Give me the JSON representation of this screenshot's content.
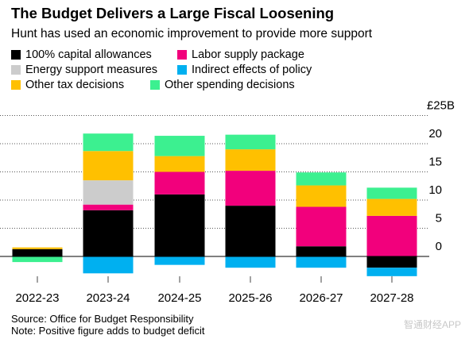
{
  "title": "The Budget Delivers a Large Fiscal Loosening",
  "subtitle": "Hunt has used an economic improvement to provide more support",
  "legend": [
    {
      "label": "100% capital allowances",
      "color": "#000000"
    },
    {
      "label": "Labor supply package",
      "color": "#f2007c"
    },
    {
      "label": "Energy support measures",
      "color": "#cccccc"
    },
    {
      "label": "Indirect effects of policy",
      "color": "#00b0f0"
    },
    {
      "label": "Other tax decisions",
      "color": "#ffc000"
    },
    {
      "label": "Other spending decisions",
      "color": "#3cf090"
    }
  ],
  "chart_data": {
    "type": "bar",
    "stacked": true,
    "categories": [
      "2022-23",
      "2023-24",
      "2024-25",
      "2025-26",
      "2026-27",
      "2027-28"
    ],
    "y_unit_label": "£25B",
    "y_ticks": [
      "20",
      "15",
      "10",
      "5",
      "0"
    ],
    "ylim": [
      -5,
      25
    ],
    "grid": true,
    "legend_position": "top",
    "series": [
      {
        "name": "100% capital allowances",
        "color": "#000000",
        "values": [
          1.3,
          8.2,
          11.0,
          9.0,
          1.8,
          -2.0
        ]
      },
      {
        "name": "Labor supply package",
        "color": "#f2007c",
        "values": [
          0,
          1.0,
          4.0,
          6.2,
          7.0,
          7.2
        ]
      },
      {
        "name": "Energy support measures",
        "color": "#cccccc",
        "values": [
          0,
          4.3,
          0,
          0,
          0,
          0
        ]
      },
      {
        "name": "Indirect effects of policy",
        "color": "#00b0f0",
        "values": [
          0,
          -3.0,
          -1.5,
          -2.0,
          -2.0,
          -1.5
        ]
      },
      {
        "name": "Other tax decisions",
        "color": "#ffc000",
        "values": [
          0.3,
          5.2,
          2.8,
          3.8,
          3.8,
          3.0
        ]
      },
      {
        "name": "Other spending decisions",
        "color": "#3cf090",
        "values": [
          -1.0,
          3.1,
          3.6,
          2.6,
          2.3,
          2.0
        ]
      }
    ]
  },
  "source": "Source: Office for Budget Responsibility",
  "note": "Note: Positive figure adds to budget deficit",
  "watermark": "智通财经APP"
}
